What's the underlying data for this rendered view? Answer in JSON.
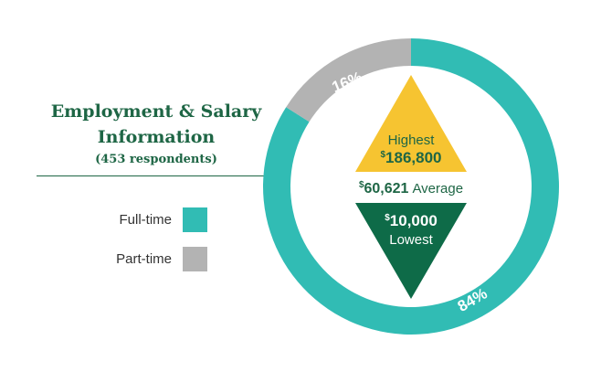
{
  "title_line1": "Employment & Salary",
  "title_line2": "Information",
  "subtitle": "(453 respondents)",
  "colors": {
    "fulltime": "#31bcb4",
    "parttime": "#b3b3b3",
    "highest": "#f6c431",
    "lowest": "#0e6b48",
    "title": "#1e6645"
  },
  "legend": [
    {
      "label": "Full-time",
      "color": "#31bcb4"
    },
    {
      "label": "Part-time",
      "color": "#b3b3b3"
    }
  ],
  "chart_data": {
    "type": "pie",
    "donut": true,
    "slices": [
      {
        "name": "Full-time",
        "value": 84,
        "label": "84%",
        "color": "#31bcb4"
      },
      {
        "name": "Part-time",
        "value": 16,
        "label": "16%",
        "color": "#b3b3b3"
      }
    ],
    "salary": {
      "highest": {
        "label": "Highest",
        "currency": "$",
        "amount": "186,800"
      },
      "average": {
        "currency": "$",
        "amount": "60,621",
        "label": "Average"
      },
      "lowest": {
        "currency": "$",
        "amount": "10,000",
        "label": "Lowest"
      }
    }
  }
}
